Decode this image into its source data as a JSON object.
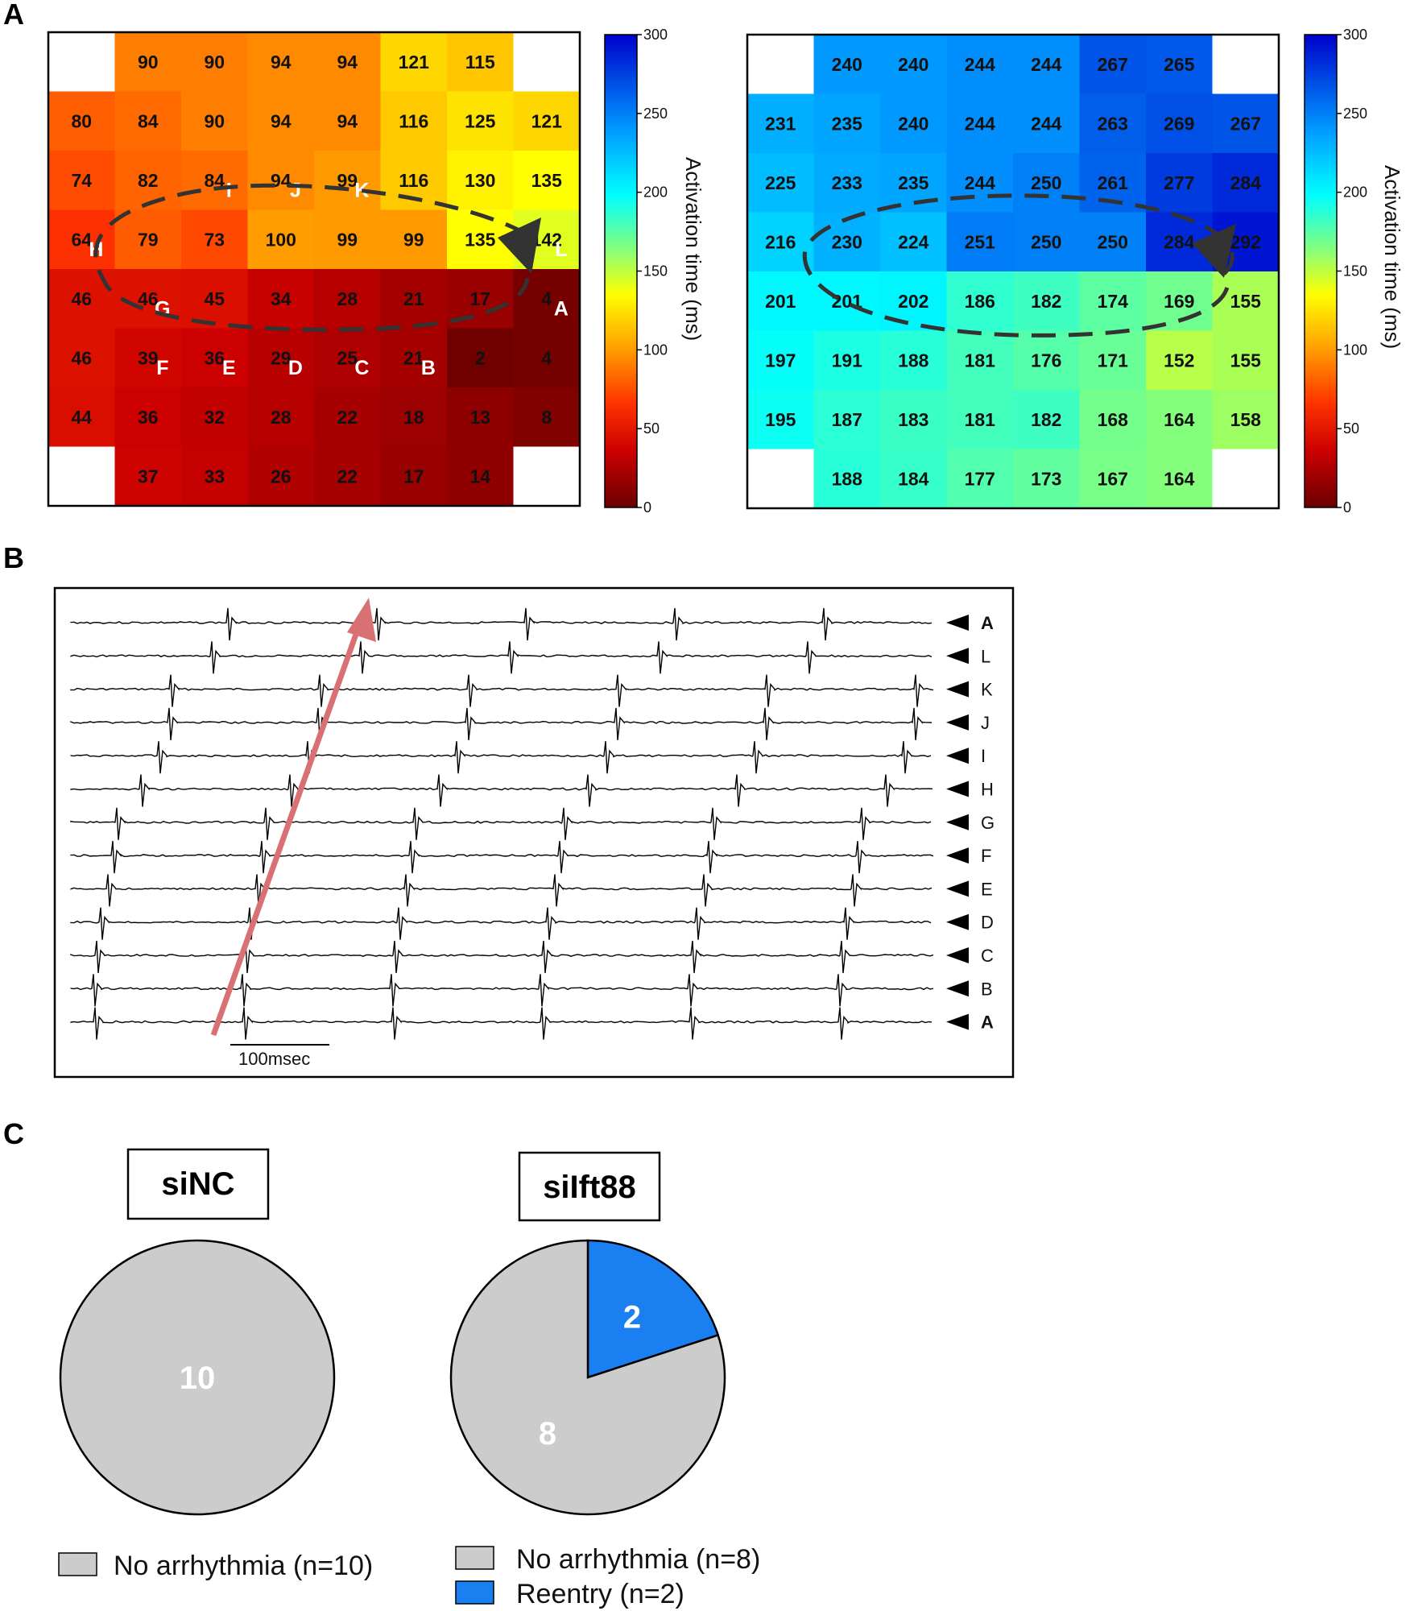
{
  "panels": {
    "a": "A",
    "b": "B",
    "c": "C"
  },
  "chart_data": [
    {
      "type": "heatmap",
      "panel": "A",
      "cells": [
        [
          null,
          90,
          90,
          94,
          94,
          121,
          115,
          null
        ],
        [
          80,
          84,
          90,
          94,
          94,
          116,
          125,
          121
        ],
        [
          74,
          82,
          84,
          94,
          99,
          116,
          130,
          135
        ],
        [
          64,
          79,
          73,
          100,
          99,
          99,
          135,
          142
        ],
        [
          46,
          46,
          45,
          34,
          28,
          21,
          17,
          4
        ],
        [
          46,
          39,
          36,
          29,
          25,
          21,
          2,
          4
        ],
        [
          44,
          36,
          32,
          28,
          22,
          18,
          13,
          8
        ],
        [
          null,
          37,
          33,
          26,
          22,
          17,
          14,
          null
        ]
      ],
      "site_labels": [
        {
          "label": "A",
          "row": 4,
          "col": 7
        },
        {
          "label": "B",
          "row": 5,
          "col": 5
        },
        {
          "label": "C",
          "row": 5,
          "col": 4
        },
        {
          "label": "D",
          "row": 5,
          "col": 3
        },
        {
          "label": "E",
          "row": 5,
          "col": 2
        },
        {
          "label": "F",
          "row": 5,
          "col": 1
        },
        {
          "label": "G",
          "row": 4,
          "col": 1
        },
        {
          "label": "H",
          "row": 3,
          "col": 0
        },
        {
          "label": "I",
          "row": 2,
          "col": 2
        },
        {
          "label": "J",
          "row": 2,
          "col": 3
        },
        {
          "label": "K",
          "row": 2,
          "col": 4
        },
        {
          "label": "L",
          "row": 3,
          "col": 7
        }
      ],
      "colorbar": {
        "label": "Activation time (ms)",
        "range": [
          0,
          300
        ],
        "ticks": [
          "0",
          "50",
          "100",
          "150",
          "200",
          "250",
          "300"
        ],
        "colormap": "jet-reversed"
      }
    },
    {
      "type": "heatmap",
      "panel": "A",
      "cells": [
        [
          null,
          240,
          240,
          244,
          244,
          267,
          265,
          null
        ],
        [
          231,
          235,
          240,
          244,
          244,
          263,
          269,
          267
        ],
        [
          225,
          233,
          235,
          244,
          250,
          261,
          277,
          284
        ],
        [
          216,
          230,
          224,
          251,
          250,
          250,
          284,
          292
        ],
        [
          201,
          201,
          202,
          186,
          182,
          174,
          169,
          155
        ],
        [
          197,
          191,
          188,
          181,
          176,
          171,
          152,
          155
        ],
        [
          195,
          187,
          183,
          181,
          182,
          168,
          164,
          158
        ],
        [
          null,
          188,
          184,
          177,
          173,
          167,
          164,
          null
        ]
      ],
      "colorbar": {
        "label": "Activation time (ms)",
        "range": [
          0,
          300
        ],
        "ticks": [
          "0",
          "50",
          "100",
          "150",
          "200",
          "250",
          "300"
        ],
        "colormap": "jet-reversed"
      }
    },
    {
      "type": "line",
      "panel": "B",
      "traces": [
        "A",
        "L",
        "K",
        "J",
        "I",
        "H",
        "G",
        "F",
        "E",
        "D",
        "C",
        "B",
        "A"
      ],
      "bold_traces": [
        0,
        12
      ],
      "scale_bar": "100msec"
    },
    {
      "type": "pie",
      "panel": "C",
      "title": "siNC",
      "slices": [
        {
          "name": "No arrhythmia",
          "value": 10,
          "color": "#cccccc"
        }
      ],
      "legend": [
        "No arrhythmia (n=10)"
      ]
    },
    {
      "type": "pie",
      "panel": "C",
      "title": "siIft88",
      "slices": [
        {
          "name": "Reentry",
          "value": 2,
          "color": "#1a80f2"
        },
        {
          "name": "No arrhythmia",
          "value": 8,
          "color": "#cccccc"
        }
      ],
      "legend": [
        "No arrhythmia (n=8)",
        "Reentry (n=2)"
      ]
    }
  ]
}
